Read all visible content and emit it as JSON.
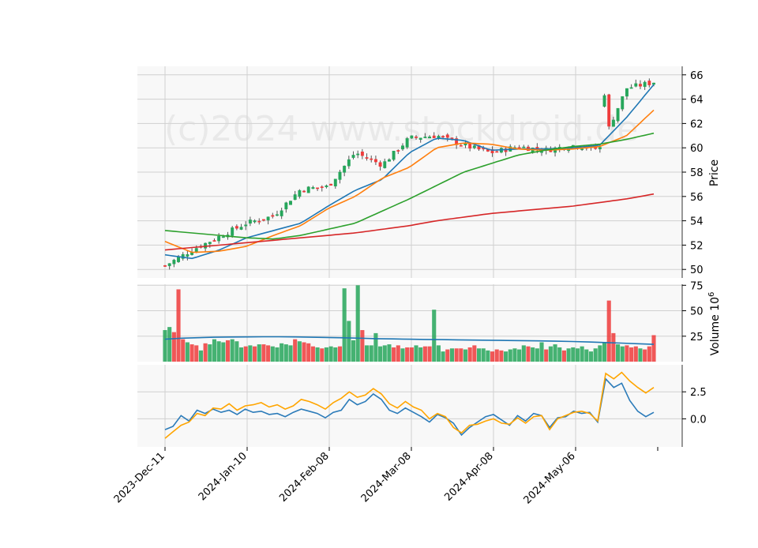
{
  "watermark": "(c)2024 www.stockdroid.de",
  "chart_data": {
    "type": "candlestick",
    "x_ticks": [
      "2023-Dec-11",
      "2024-Jan-10",
      "2024-Feb-08",
      "2024-Mar-08",
      "2024-Apr-08",
      "2024-May-06"
    ],
    "panels": [
      {
        "name": "price",
        "ylabel": "Price",
        "ylim": [
          49.3,
          66.7
        ],
        "yticks": [
          50,
          52,
          54,
          56,
          58,
          60,
          62,
          64,
          66
        ],
        "close_anchors": [
          50.3,
          51.6,
          52.7,
          53.8,
          54.4,
          56.6,
          56.8,
          59.6,
          58.6,
          60.8,
          61.0,
          60.2,
          59.6,
          60.1,
          59.8,
          60.2,
          59.9,
          64.9,
          65.4
        ],
        "moving_averages": [
          {
            "color": "#1f77b4",
            "values": [
              51.2,
              50.9,
              51.6,
              52.6,
              53.2,
              53.8,
              55.2,
              56.5,
              57.4,
              59.6,
              60.8,
              60.6,
              59.8,
              59.9,
              59.9,
              60.0,
              60.2,
              62.5,
              65.2
            ]
          },
          {
            "color": "#ff7f0e",
            "values": [
              52.3,
              51.4,
              51.5,
              51.9,
              52.8,
              53.6,
              55.0,
              56.0,
              57.5,
              58.4,
              60.0,
              60.4,
              60.3,
              59.9,
              59.8,
              59.9,
              60.1,
              61.0,
              63.1
            ]
          },
          {
            "color": "#2ca02c",
            "values": [
              53.2,
              53.0,
              52.8,
              52.6,
              52.5,
              52.8,
              53.3,
              53.8,
              54.8,
              55.8,
              56.9,
              58.0,
              58.7,
              59.4,
              59.8,
              60.1,
              60.3,
              60.7,
              61.2
            ]
          },
          {
            "color": "#d62728",
            "values": [
              51.6,
              51.8,
              52.0,
              52.2,
              52.4,
              52.6,
              52.8,
              53.0,
              53.3,
              53.6,
              54.0,
              54.3,
              54.6,
              54.8,
              55.0,
              55.2,
              55.5,
              55.8,
              56.2
            ]
          }
        ]
      },
      {
        "name": "volume",
        "ylabel": "Volume 10^6",
        "ylim": [
          0,
          76
        ],
        "yticks": [
          25,
          50,
          75
        ],
        "up_color": "#26a65b",
        "down_color": "#ef3b3b",
        "values": [
          31,
          34,
          29,
          71,
          22,
          19,
          17,
          16,
          11,
          18,
          17,
          22,
          20,
          19,
          21,
          22,
          20,
          14,
          15,
          16,
          15,
          17,
          17,
          16,
          15,
          14,
          18,
          17,
          16,
          22,
          20,
          19,
          18,
          15,
          14,
          13,
          14,
          15,
          14,
          15,
          72,
          40,
          21,
          75,
          31,
          16,
          16,
          28,
          15,
          16,
          17,
          14,
          16,
          13,
          14,
          14,
          16,
          14,
          15,
          15,
          51,
          16,
          10,
          12,
          13,
          13,
          13,
          12,
          14,
          16,
          13,
          13,
          11,
          10,
          12,
          11,
          10,
          12,
          13,
          12,
          16,
          15,
          14,
          13,
          19,
          12,
          15,
          17,
          14,
          11,
          13,
          14,
          13,
          15,
          12,
          10,
          13,
          16,
          19,
          60,
          28,
          17,
          15,
          16,
          14,
          15,
          13,
          12,
          15,
          26
        ],
        "average": [
          22,
          23,
          23.5,
          24,
          24.2,
          24.3,
          24.4,
          24.4,
          24.3,
          24,
          23.7,
          23.4,
          23,
          22.6,
          22.3,
          22,
          21.8,
          21.6,
          21.4,
          21.2,
          21,
          20.8,
          20.6,
          20.4,
          20.1,
          19.8,
          19.3,
          18.8,
          18.2,
          17.6,
          17
        ]
      },
      {
        "name": "indicator",
        "ylim": [
          -2.6,
          5.0
        ],
        "yticks": [
          0.0,
          2.5
        ],
        "series": [
          {
            "color": "#2b7bb9",
            "values": [
              -1.0,
              -0.7,
              0.3,
              -0.2,
              0.8,
              0.5,
              0.9,
              0.6,
              0.8,
              0.4,
              0.9,
              0.6,
              0.7,
              0.4,
              0.5,
              0.2,
              0.6,
              0.9,
              0.7,
              0.5,
              0.1,
              0.6,
              0.8,
              1.8,
              1.3,
              1.6,
              2.3,
              1.8,
              0.8,
              0.5,
              1.0,
              0.6,
              0.2,
              -0.3,
              0.4,
              0.1,
              -0.4,
              -1.5,
              -0.8,
              -0.3,
              0.2,
              0.4,
              -0.1,
              -0.6,
              0.3,
              -0.2,
              0.5,
              0.3,
              -0.8,
              0.1,
              0.2,
              0.7,
              0.5,
              0.6,
              -0.3,
              3.7,
              2.9,
              3.3,
              1.7,
              0.7,
              0.2,
              0.6
            ]
          },
          {
            "color": "#ffa500",
            "values": [
              -1.8,
              -1.2,
              -0.6,
              -0.3,
              0.5,
              0.3,
              1.0,
              0.9,
              1.4,
              0.8,
              1.2,
              1.3,
              1.5,
              1.1,
              1.3,
              0.9,
              1.2,
              1.8,
              1.6,
              1.3,
              0.9,
              1.5,
              1.9,
              2.5,
              2.0,
              2.2,
              2.8,
              2.3,
              1.4,
              1.0,
              1.6,
              1.1,
              0.8,
              0.0,
              0.5,
              0.2,
              -0.8,
              -1.3,
              -0.6,
              -0.5,
              -0.2,
              0.0,
              -0.4,
              -0.5,
              0.1,
              -0.4,
              0.2,
              0.3,
              -1.0,
              0.0,
              0.3,
              0.6,
              0.7,
              0.5,
              -0.2,
              4.2,
              3.7,
              4.3,
              3.5,
              2.9,
              2.4,
              2.9
            ]
          }
        ]
      }
    ]
  }
}
